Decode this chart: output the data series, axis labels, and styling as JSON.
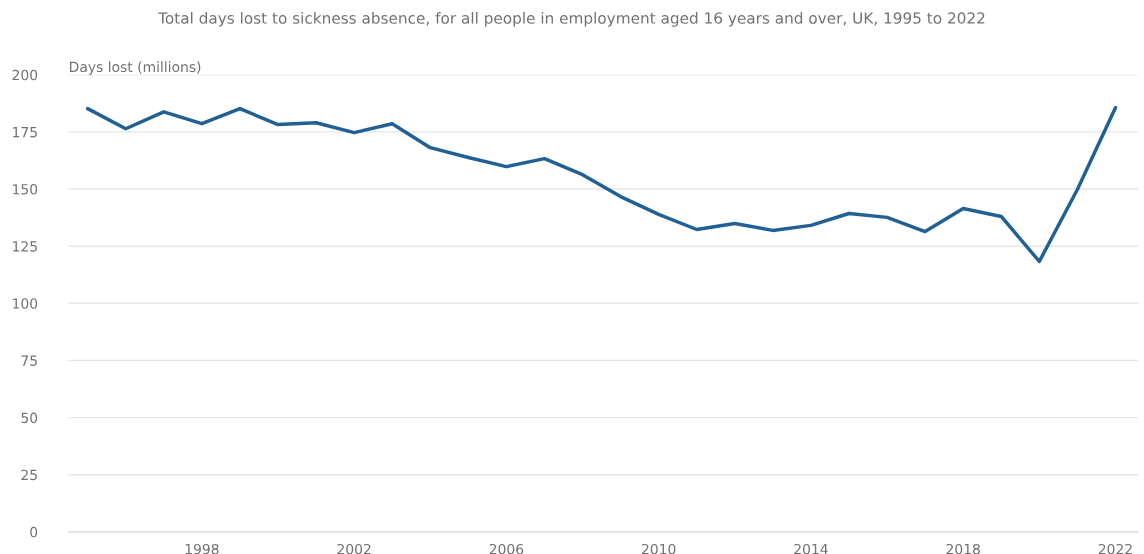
{
  "chart_data": {
    "type": "line",
    "subtitle": "Total days lost to sickness absence, for all people in employment aged 16 years and over, UK, 1995 to 2022",
    "ylabel": "Days lost (millions)",
    "x": [
      1995,
      1996,
      1997,
      1998,
      1999,
      2000,
      2001,
      2002,
      2003,
      2004,
      2005,
      2006,
      2007,
      2008,
      2009,
      2010,
      2011,
      2012,
      2013,
      2014,
      2015,
      2016,
      2017,
      2018,
      2019,
      2020,
      2021,
      2022
    ],
    "series": [
      {
        "color": "#206095",
        "values": [
          185.2,
          176.4,
          183.8,
          178.6,
          185.2,
          178.2,
          179.0,
          174.7,
          178.6,
          168.1,
          163.8,
          159.8,
          163.3,
          156.3,
          146.7,
          138.9,
          132.3,
          134.9,
          131.9,
          134.1,
          139.3,
          137.6,
          131.4,
          141.5,
          138.0,
          118.3,
          149.8,
          185.6
        ]
      }
    ],
    "xlim": [
      1994.5,
      2022.6
    ],
    "xticks": [
      1998,
      2002,
      2006,
      2010,
      2014,
      2018,
      2022
    ],
    "ylim": [
      0,
      200
    ],
    "yticks": [
      0,
      25,
      50,
      75,
      100,
      125,
      150,
      175,
      200
    ],
    "grid": "y",
    "marker": "none",
    "line_style": "solid"
  }
}
